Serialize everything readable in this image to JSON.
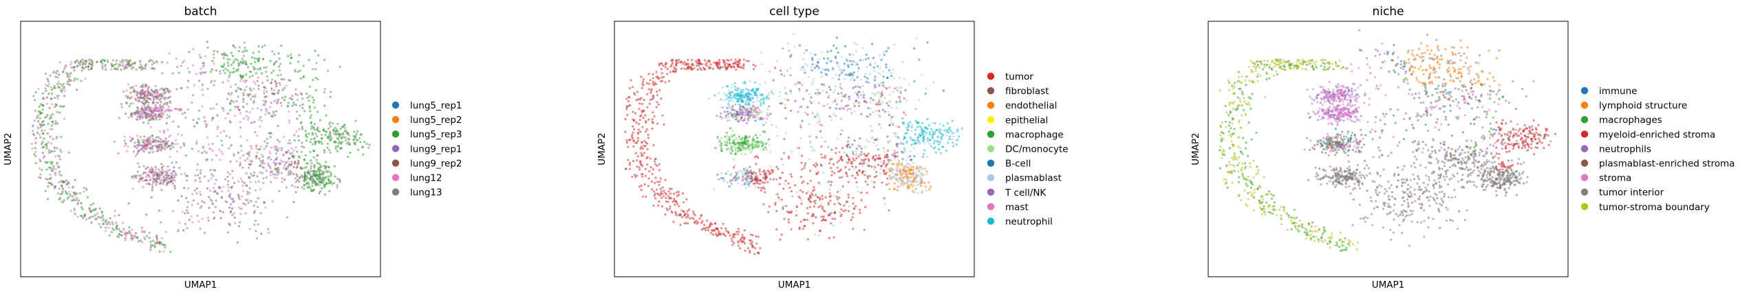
{
  "chart_data": [
    {
      "type": "scatter",
      "title": "batch",
      "xlabel": "UMAP1",
      "ylabel": "UMAP2",
      "grid": false,
      "legend_position": "right",
      "series": [
        {
          "name": "lung5_rep1",
          "color": "#1f77b4"
        },
        {
          "name": "lung5_rep2",
          "color": "#ff7f0e"
        },
        {
          "name": "lung5_rep3",
          "color": "#2ca02c"
        },
        {
          "name": "lung9_rep1",
          "color": "#9467bd"
        },
        {
          "name": "lung9_rep2",
          "color": "#8c564b"
        },
        {
          "name": "lung12",
          "color": "#e377c2"
        },
        {
          "name": "lung13",
          "color": "#7f7f7f"
        }
      ]
    },
    {
      "type": "scatter",
      "title": "cell type",
      "xlabel": "UMAP1",
      "ylabel": "UMAP2",
      "grid": false,
      "legend_position": "right",
      "series": [
        {
          "name": "tumor",
          "color": "#d62728"
        },
        {
          "name": "fibroblast",
          "color": "#8c564b"
        },
        {
          "name": "endothelial",
          "color": "#ff7f0e"
        },
        {
          "name": "epithelial",
          "color": "#ffee00"
        },
        {
          "name": "macrophage",
          "color": "#2ca02c"
        },
        {
          "name": "DC/monocyte",
          "color": "#98df8a"
        },
        {
          "name": "B-cell",
          "color": "#1f77b4"
        },
        {
          "name": "plasmablast",
          "color": "#aec7e8"
        },
        {
          "name": "T cell/NK",
          "color": "#9467bd"
        },
        {
          "name": "mast",
          "color": "#e377c2"
        },
        {
          "name": "neutrophil",
          "color": "#17becf"
        }
      ]
    },
    {
      "type": "scatter",
      "title": "niche",
      "xlabel": "UMAP1",
      "ylabel": "UMAP2",
      "grid": false,
      "legend_position": "right",
      "series": [
        {
          "name": "immune",
          "color": "#1f77b4"
        },
        {
          "name": "lymphoid structure",
          "color": "#ff7f0e"
        },
        {
          "name": "macrophages",
          "color": "#2ca02c"
        },
        {
          "name": "myeloid-enriched stroma",
          "color": "#d62728"
        },
        {
          "name": "neutrophils",
          "color": "#9467bd"
        },
        {
          "name": "plasmablast-enriched stroma",
          "color": "#8c564b"
        },
        {
          "name": "stroma",
          "color": "#e377c2"
        },
        {
          "name": "tumor interior",
          "color": "#7f7f7f"
        },
        {
          "name": "tumor-stroma boundary",
          "color": "#bcbd22"
        }
      ]
    }
  ]
}
